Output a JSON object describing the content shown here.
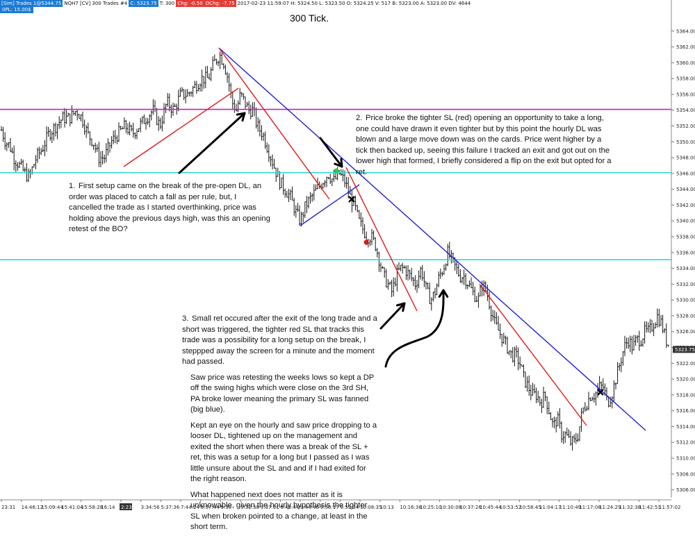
{
  "header": {
    "sim_label": "[Sim]  Trades  1@5344.75",
    "instrument": "NQH7 [CV]  300 Trades  #4",
    "last_value": "C: 5323.75",
    "tick_label": "T: 300",
    "chg": "Chg: -0.50",
    "dchg": "DChg: -7.75",
    "ohlc": "2017-02-23 11:59:07 H: 5324.50 L: 5323.50 O: 5324.25 V: 517 B: 5323.00 A: 5323.00 DV: 4644",
    "sub_label": "0PL: 15.00$"
  },
  "colors": {
    "resistance_line": "#c41ec4",
    "support_line": "#33d6d6",
    "trend_blue": "#1f1fd6",
    "trend_red": "#e01818",
    "price_tag": "#333333",
    "badge_blue": "#1a7ad4"
  },
  "chart_data": {
    "type": "ohlc-bar",
    "title": "300 Tick.",
    "ylim": [
      5305,
      5366
    ],
    "y_ticks": [
      "5364.00",
      "5362.00",
      "5360.00",
      "5358.00",
      "5356.00",
      "5354.00",
      "5352.00",
      "5350.00",
      "5348.00",
      "5346.00",
      "5344.00",
      "5342.00",
      "5340.00",
      "5338.00",
      "5336.00",
      "5334.00",
      "5332.00",
      "5330.00",
      "5328.00",
      "5326.00",
      "5324.00",
      "5322.00",
      "5320.00",
      "5318.00",
      "5316.00",
      "5314.00",
      "5312.00",
      "5310.00",
      "5308.00",
      "5306.00"
    ],
    "last_price_label": "5323.75",
    "x_ticks": [
      "23:31",
      "14:46:12",
      "15:09:44",
      "15:41:04",
      "15:58:28",
      "16:14",
      "2:23",
      "3:34:56",
      "5:37:36",
      "7:44:24",
      "8:57:44",
      "9:30",
      "9:32:38",
      "9:37:11",
      "9:40:44",
      "9:44:46",
      "9:50:17",
      "9:59:34",
      "10:08:35",
      "10:13",
      "10:16:38",
      "10:25:10",
      "10:30:08",
      "10:37:26",
      "10:45:44",
      "10:53:52",
      "10:58:45",
      "11:04:17",
      "11:10:49",
      "11:17:08",
      "11:24:29",
      "11:32:38",
      "11:42:51",
      "11:57:02"
    ],
    "x_highlight_tick": "2:23",
    "horizontal_lines": [
      {
        "price": 5354.1,
        "role": "resistance"
      },
      {
        "price": 5346.1,
        "role": "support"
      },
      {
        "price": 5335.1,
        "role": "support"
      }
    ],
    "price_path": [
      [
        0,
        5352
      ],
      [
        8,
        5350
      ],
      [
        14,
        5349.5
      ],
      [
        20,
        5348
      ],
      [
        28,
        5347
      ],
      [
        36,
        5346
      ],
      [
        42,
        5345.5
      ],
      [
        52,
        5348
      ],
      [
        60,
        5349
      ],
      [
        70,
        5351
      ],
      [
        80,
        5352
      ],
      [
        90,
        5353
      ],
      [
        100,
        5353
      ],
      [
        110,
        5354
      ],
      [
        118,
        5353
      ],
      [
        126,
        5351
      ],
      [
        134,
        5350
      ],
      [
        142,
        5348
      ],
      [
        150,
        5348
      ],
      [
        160,
        5350
      ],
      [
        170,
        5351
      ],
      [
        180,
        5352
      ],
      [
        190,
        5351
      ],
      [
        200,
        5352
      ],
      [
        210,
        5353
      ],
      [
        220,
        5354
      ],
      [
        230,
        5352
      ],
      [
        240,
        5355
      ],
      [
        250,
        5354
      ],
      [
        260,
        5356
      ],
      [
        270,
        5356
      ],
      [
        280,
        5357
      ],
      [
        290,
        5358
      ],
      [
        300,
        5358
      ],
      [
        308,
        5360
      ],
      [
        316,
        5361
      ],
      [
        322,
        5360
      ],
      [
        328,
        5358
      ],
      [
        334,
        5355
      ],
      [
        340,
        5354
      ],
      [
        346,
        5356
      ],
      [
        352,
        5355
      ],
      [
        358,
        5354
      ],
      [
        364,
        5354
      ],
      [
        370,
        5352
      ],
      [
        378,
        5351
      ],
      [
        386,
        5349
      ],
      [
        394,
        5347
      ],
      [
        402,
        5345
      ],
      [
        410,
        5344
      ],
      [
        418,
        5343
      ],
      [
        426,
        5341
      ],
      [
        432,
        5340
      ],
      [
        440,
        5342
      ],
      [
        448,
        5343
      ],
      [
        456,
        5344
      ],
      [
        464,
        5345
      ],
      [
        472,
        5346
      ],
      [
        480,
        5345
      ],
      [
        488,
        5346
      ],
      [
        496,
        5345
      ],
      [
        504,
        5343
      ],
      [
        510,
        5342
      ],
      [
        516,
        5340
      ],
      [
        522,
        5339
      ],
      [
        528,
        5338
      ],
      [
        534,
        5338
      ],
      [
        540,
        5337
      ],
      [
        546,
        5335
      ],
      [
        552,
        5333
      ],
      [
        558,
        5332
      ],
      [
        564,
        5331
      ],
      [
        570,
        5333
      ],
      [
        576,
        5334
      ],
      [
        582,
        5334
      ],
      [
        590,
        5333
      ],
      [
        598,
        5332
      ],
      [
        606,
        5334
      ],
      [
        614,
        5331
      ],
      [
        620,
        5330
      ],
      [
        626,
        5331
      ],
      [
        632,
        5333
      ],
      [
        638,
        5334
      ],
      [
        644,
        5336
      ],
      [
        650,
        5335
      ],
      [
        656,
        5334
      ],
      [
        662,
        5333
      ],
      [
        668,
        5333
      ],
      [
        674,
        5332
      ],
      [
        680,
        5331
      ],
      [
        688,
        5330
      ],
      [
        694,
        5332
      ],
      [
        700,
        5331
      ],
      [
        706,
        5329
      ],
      [
        712,
        5327
      ],
      [
        718,
        5326
      ],
      [
        724,
        5325
      ],
      [
        730,
        5324
      ],
      [
        736,
        5323
      ],
      [
        742,
        5323
      ],
      [
        748,
        5322
      ],
      [
        754,
        5320
      ],
      [
        760,
        5319
      ],
      [
        766,
        5318
      ],
      [
        772,
        5318
      ],
      [
        778,
        5317
      ],
      [
        784,
        5318
      ],
      [
        790,
        5316
      ],
      [
        796,
        5314
      ],
      [
        802,
        5315
      ],
      [
        808,
        5313
      ],
      [
        814,
        5313
      ],
      [
        820,
        5312
      ],
      [
        826,
        5312
      ],
      [
        832,
        5313
      ],
      [
        838,
        5316
      ],
      [
        844,
        5317
      ],
      [
        850,
        5318
      ],
      [
        856,
        5318
      ],
      [
        862,
        5319
      ],
      [
        868,
        5319
      ],
      [
        874,
        5317
      ],
      [
        880,
        5318
      ],
      [
        886,
        5320
      ],
      [
        892,
        5322
      ],
      [
        898,
        5324
      ],
      [
        904,
        5325
      ],
      [
        910,
        5324
      ],
      [
        916,
        5325
      ],
      [
        922,
        5325
      ],
      [
        928,
        5326
      ],
      [
        934,
        5326
      ],
      [
        940,
        5327
      ],
      [
        946,
        5328
      ],
      [
        952,
        5327
      ],
      [
        958,
        5325
      ],
      [
        964,
        5324
      ]
    ],
    "annotations": {
      "n1": {
        "num": "1.",
        "text": "First setup came on the break of the pre-open DL, an order was placed to catch a fall as per rule, but, I cancelled the trade as I started overthinking, price was holding above the previous days high, was this an opening retest of the BO?"
      },
      "n2": {
        "num": "2.",
        "text": "Price broke the tighter SL (red) opening an opportunity to take a long, one could have drawn it even tighter but by this point the hourly DL was blown and a large move down was on the cards.  Price went higher by a tick then backed up, seeing this failure I tracked an exit and got out on the lower high that formed, I briefly considered a flip on the exit but opted for a ret."
      },
      "n3": {
        "num": "3.",
        "p1": "Small ret occured after the exit of the long trade and a short was triggered, the tighter red SL that tracks this trade was a possibility for a long setup on the break, I steppped away the screen for a minute and the moment had passed.",
        "p2": "Saw price was retesting the weeks lows so kept a DP off the swing highs which were close on the 3rd SH, PA broke lower meaning the primary SL was fanned (big blue).",
        "p3": "Kept an eye on the hourly and saw price dropping to a looser DL, tightened up on the management and exited the short when there was a break of the SL + ret, this was a setup for a long but I passed as I was little unsure about the SL and and if I had exited for the right reason.",
        "p4": "What happened next does not matter as it is unknowable, given the hourly hypothesis the tighter SL when broken pointed to a change, at least in the short term."
      }
    }
  }
}
